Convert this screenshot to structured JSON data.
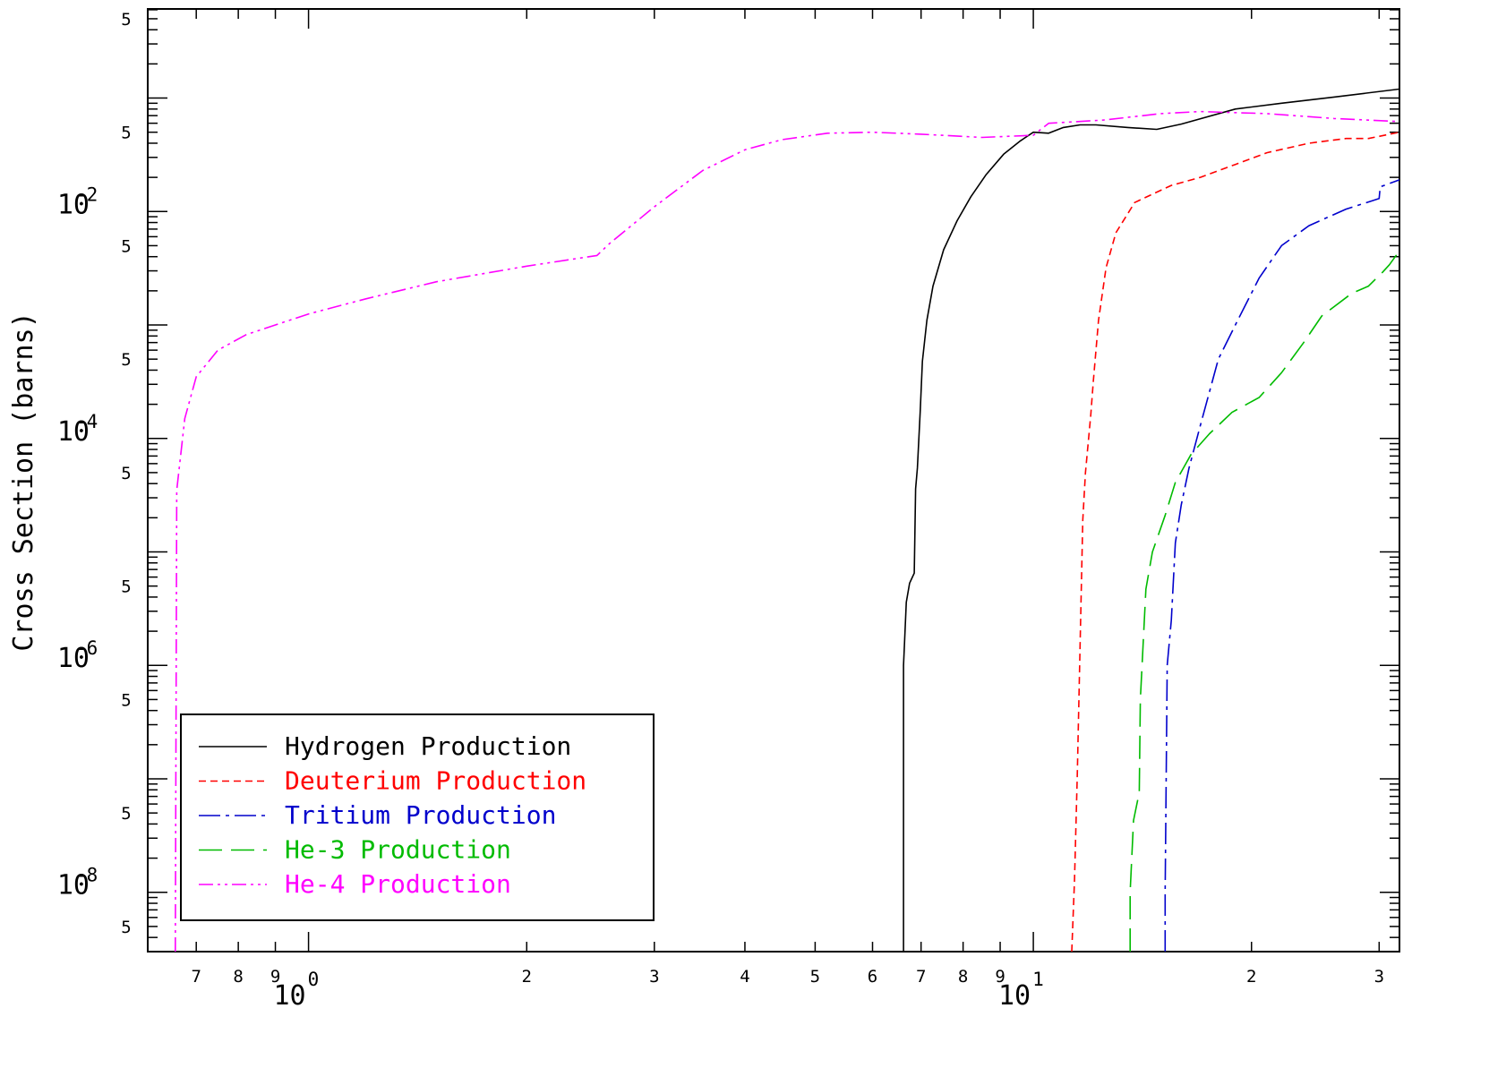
{
  "chart_data": {
    "type": "line",
    "title": "",
    "xlabel": "",
    "ylabel": "Cross Section (barns)",
    "xscale": "log",
    "yscale": "log",
    "xlim": [
      0.6,
      32
    ],
    "ylim": [
      3e-09,
      0.61
    ],
    "grid": false,
    "legend_position": "bottom-left",
    "x_ticks": {
      "minor_labels": [
        {
          "value": 0.7,
          "label": "7"
        },
        {
          "value": 0.8,
          "label": "8"
        },
        {
          "value": 0.9,
          "label": "9"
        },
        {
          "value": 2,
          "label": "2"
        },
        {
          "value": 3,
          "label": "3"
        },
        {
          "value": 4,
          "label": "4"
        },
        {
          "value": 5,
          "label": "5"
        },
        {
          "value": 6,
          "label": "6"
        },
        {
          "value": 7,
          "label": "7"
        },
        {
          "value": 8,
          "label": "8"
        },
        {
          "value": 9,
          "label": "9"
        },
        {
          "value": 20,
          "label": "2"
        },
        {
          "value": 30,
          "label": "3"
        }
      ],
      "decade_labels": [
        {
          "value": 1,
          "base": "10",
          "exponent": "0"
        },
        {
          "value": 10,
          "base": "10",
          "exponent": "1"
        }
      ]
    },
    "y_ticks": {
      "minor_labels": [
        {
          "value": 0.5,
          "label": "5"
        },
        {
          "value": 0.05,
          "label": "5"
        },
        {
          "value": 0.005,
          "label": "5"
        },
        {
          "value": 0.0005,
          "label": "5"
        },
        {
          "value": 5e-05,
          "label": "5"
        },
        {
          "value": 5e-06,
          "label": "5"
        },
        {
          "value": 5e-07,
          "label": "5"
        },
        {
          "value": 5e-08,
          "label": "5"
        },
        {
          "value": 5e-09,
          "label": "5"
        }
      ],
      "decade_labels": [
        {
          "value": 0.01,
          "base": "10",
          "exponent": "-2"
        },
        {
          "value": 0.0001,
          "base": "10",
          "exponent": "-4"
        },
        {
          "value": 1e-06,
          "base": "10",
          "exponent": "-6"
        },
        {
          "value": 1e-08,
          "base": "10",
          "exponent": "-8"
        }
      ]
    },
    "series": [
      {
        "name": "Hydrogen Production",
        "color": "#000000",
        "dash": "solid",
        "points": [
          [
            6.62,
            3e-09
          ],
          [
            6.62,
            1e-06
          ],
          [
            6.64,
            1.5e-06
          ],
          [
            6.68,
            3.6e-06
          ],
          [
            6.75,
            5.3e-06
          ],
          [
            6.85,
            6.5e-06
          ],
          [
            6.88,
            3.6e-05
          ],
          [
            6.92,
            5.5e-05
          ],
          [
            6.98,
            0.00017
          ],
          [
            7.03,
            0.00048
          ],
          [
            7.13,
            0.0011
          ],
          [
            7.27,
            0.0022
          ],
          [
            7.52,
            0.0046
          ],
          [
            7.85,
            0.0083
          ],
          [
            8.2,
            0.0135
          ],
          [
            8.6,
            0.021
          ],
          [
            9.1,
            0.032
          ],
          [
            9.6,
            0.042
          ],
          [
            10.0,
            0.05
          ],
          [
            10.5,
            0.049
          ],
          [
            11.0,
            0.055
          ],
          [
            11.6,
            0.058
          ],
          [
            12.2,
            0.058
          ],
          [
            13.5,
            0.055
          ],
          [
            14.8,
            0.053
          ],
          [
            16.0,
            0.059
          ],
          [
            19.0,
            0.08
          ],
          [
            22.0,
            0.09
          ],
          [
            26.0,
            0.102
          ],
          [
            32.0,
            0.12
          ]
        ]
      },
      {
        "name": "Deuterium Production",
        "color": "#ff0000",
        "dash": "short",
        "points": [
          [
            11.3,
            3e-09
          ],
          [
            11.4,
            1.3e-08
          ],
          [
            11.5,
            1.1e-07
          ],
          [
            11.6,
            1.5e-06
          ],
          [
            11.7,
            1.9e-05
          ],
          [
            11.8,
            5e-05
          ],
          [
            12.0,
            0.00016
          ],
          [
            12.1,
            0.00032
          ],
          [
            12.3,
            0.0011
          ],
          [
            12.6,
            0.0032
          ],
          [
            13.0,
            0.0065
          ],
          [
            13.8,
            0.012
          ],
          [
            15.5,
            0.017
          ],
          [
            17.0,
            0.02
          ],
          [
            19.0,
            0.026
          ],
          [
            21.0,
            0.033
          ],
          [
            24.0,
            0.04
          ],
          [
            27.0,
            0.044
          ],
          [
            29.0,
            0.044
          ],
          [
            32.0,
            0.05
          ]
        ]
      },
      {
        "name": "Tritium Production",
        "color": "#0000cc",
        "dash": "dash-dot",
        "points": [
          [
            15.2,
            3e-09
          ],
          [
            15.2,
            1e-08
          ],
          [
            15.3,
            1e-06
          ],
          [
            15.5,
            2.5e-06
          ],
          [
            15.7,
            1.2e-05
          ],
          [
            16.0,
            2.6e-05
          ],
          [
            16.4,
            5.5e-05
          ],
          [
            17.0,
            0.00013
          ],
          [
            18.0,
            0.0005
          ],
          [
            19.0,
            0.001
          ],
          [
            20.5,
            0.0026
          ],
          [
            22.0,
            0.005
          ],
          [
            24.0,
            0.0075
          ],
          [
            27.0,
            0.0105
          ],
          [
            30.0,
            0.013
          ],
          [
            30.1,
            0.0165
          ],
          [
            32.0,
            0.019
          ]
        ]
      },
      {
        "name": "He-3 Production",
        "color": "#00bb00",
        "dash": "long",
        "points": [
          [
            13.6,
            3e-09
          ],
          [
            13.6,
            1e-08
          ],
          [
            13.75,
            4.3e-08
          ],
          [
            14.0,
            7.6e-08
          ],
          [
            14.05,
            5e-07
          ],
          [
            14.3,
            4.7e-06
          ],
          [
            14.6,
            1e-05
          ],
          [
            15.2,
            2.1e-05
          ],
          [
            15.7,
            4.1e-05
          ],
          [
            16.5,
            7.2e-05
          ],
          [
            17.5,
            0.00011
          ],
          [
            18.8,
            0.00017
          ],
          [
            20.5,
            0.00023
          ],
          [
            22.0,
            0.00038
          ],
          [
            23.6,
            0.0007
          ],
          [
            25.0,
            0.0012
          ],
          [
            27.5,
            0.0019
          ],
          [
            29.0,
            0.0022
          ],
          [
            30.3,
            0.0029
          ],
          [
            31.0,
            0.0034
          ],
          [
            32.0,
            0.0045
          ]
        ]
      },
      {
        "name": "He-4 Production",
        "color": "#ff00ff",
        "dash": "dash-dot-dot",
        "points": [
          [
            0.655,
            3e-09
          ],
          [
            0.658,
            3.5e-05
          ],
          [
            0.675,
            0.00015
          ],
          [
            0.7,
            0.00035
          ],
          [
            0.75,
            0.0006
          ],
          [
            0.82,
            0.00082
          ],
          [
            0.9,
            0.001
          ],
          [
            1.0,
            0.00125
          ],
          [
            1.2,
            0.0017
          ],
          [
            1.5,
            0.0024
          ],
          [
            2.0,
            0.0033
          ],
          [
            2.5,
            0.0041
          ],
          [
            2.6,
            0.0052
          ],
          [
            3.0,
            0.011
          ],
          [
            3.5,
            0.023
          ],
          [
            4.0,
            0.035
          ],
          [
            4.5,
            0.043
          ],
          [
            5.2,
            0.049
          ],
          [
            6.0,
            0.05
          ],
          [
            7.0,
            0.048
          ],
          [
            8.5,
            0.045
          ],
          [
            10.0,
            0.047
          ],
          [
            10.5,
            0.06
          ],
          [
            12.5,
            0.064
          ],
          [
            15.0,
            0.073
          ],
          [
            17.0,
            0.076
          ],
          [
            21.0,
            0.073
          ],
          [
            26.0,
            0.066
          ],
          [
            32.0,
            0.062
          ]
        ]
      }
    ]
  }
}
